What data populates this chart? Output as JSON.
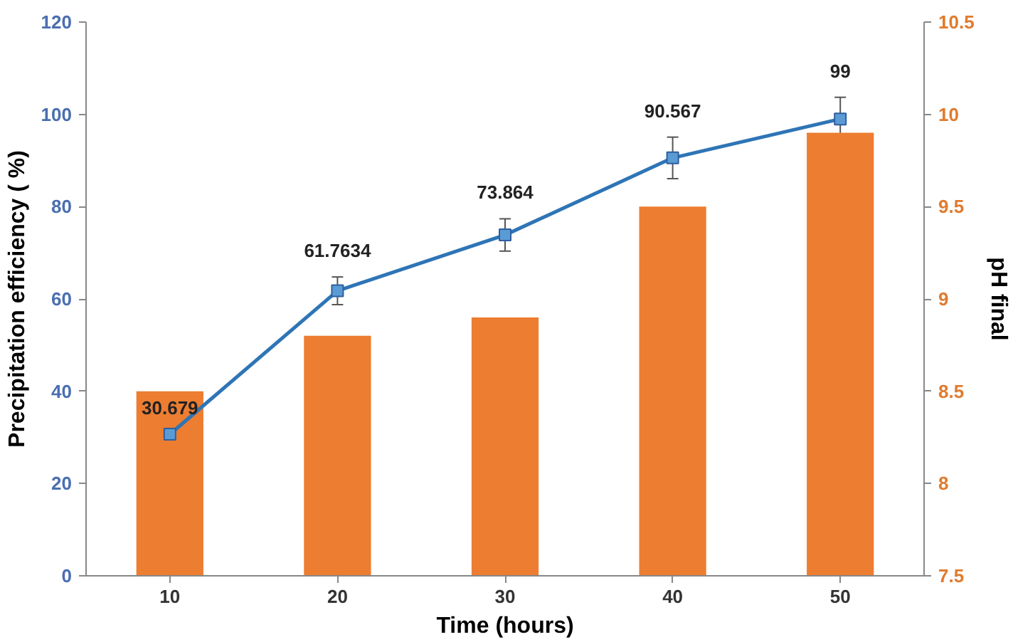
{
  "chart_data": {
    "type": "bar",
    "xlabel": "Time (hours)",
    "ylabel": "Precipitation efficiency ( %)",
    "y2label": "pH final",
    "categories": [
      "10",
      "20",
      "30",
      "40",
      "50"
    ],
    "series": [
      {
        "axis": "y2",
        "color": "#ed7d31",
        "values": [
          8.5,
          8.8,
          8.9,
          9.5,
          9.9
        ]
      },
      {
        "type": "line",
        "axis": "y",
        "color": "#2e75b6",
        "values": [
          30.679,
          61.7634,
          73.864,
          90.567,
          99
        ],
        "errors": [
          null,
          3,
          3.5,
          4.5,
          4.7
        ],
        "data_labels": true,
        "marker": "square"
      }
    ],
    "ylim": [
      0,
      120
    ],
    "yticks": [
      0,
      20,
      40,
      60,
      80,
      100,
      120
    ],
    "y2lim": [
      7.5,
      10.5
    ],
    "y2ticks": [
      7.5,
      8,
      8.5,
      9,
      9.5,
      10,
      10.5
    ],
    "grid": false
  }
}
